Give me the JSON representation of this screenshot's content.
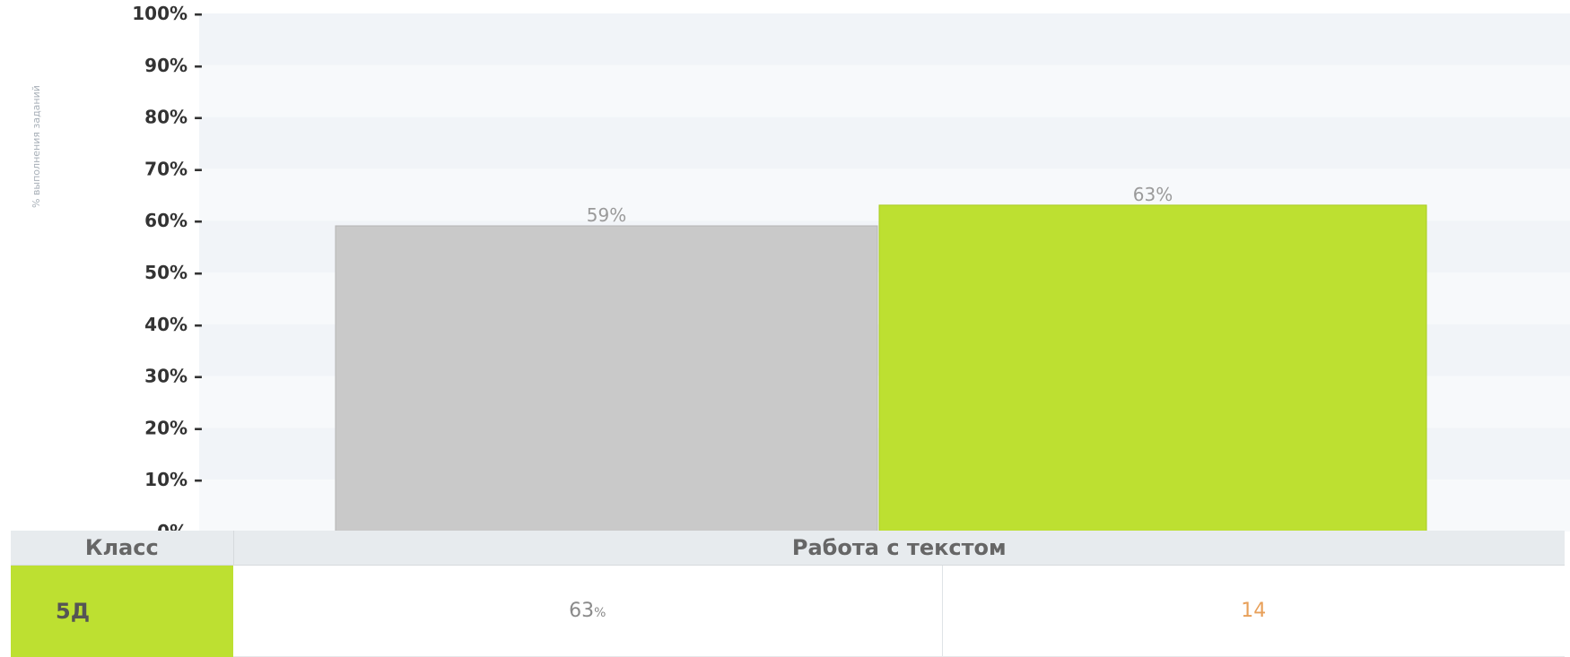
{
  "chart_data": {
    "type": "bar",
    "ylabel": "% выполнения заданий",
    "ylim": [
      0,
      100
    ],
    "yticks": [
      "0%",
      "10%",
      "20%",
      "30%",
      "40%",
      "50%",
      "60%",
      "70%",
      "80%",
      "90%",
      "100%"
    ],
    "grid": "horizontal bands",
    "bars": [
      {
        "value": 59,
        "label": "59%",
        "color": "#c9c9c9"
      },
      {
        "value": 63,
        "label": "63%",
        "color": "#bde031"
      }
    ]
  },
  "table": {
    "header_class": "Класс",
    "header_topic": "Работа с текстом",
    "class_name": "5Д",
    "percent": "63",
    "percent_unit": "%",
    "count": "14"
  },
  "colors": {
    "accent": "#bde031",
    "gray_bar": "#c9c9c9",
    "count_text": "#e8a05a"
  }
}
